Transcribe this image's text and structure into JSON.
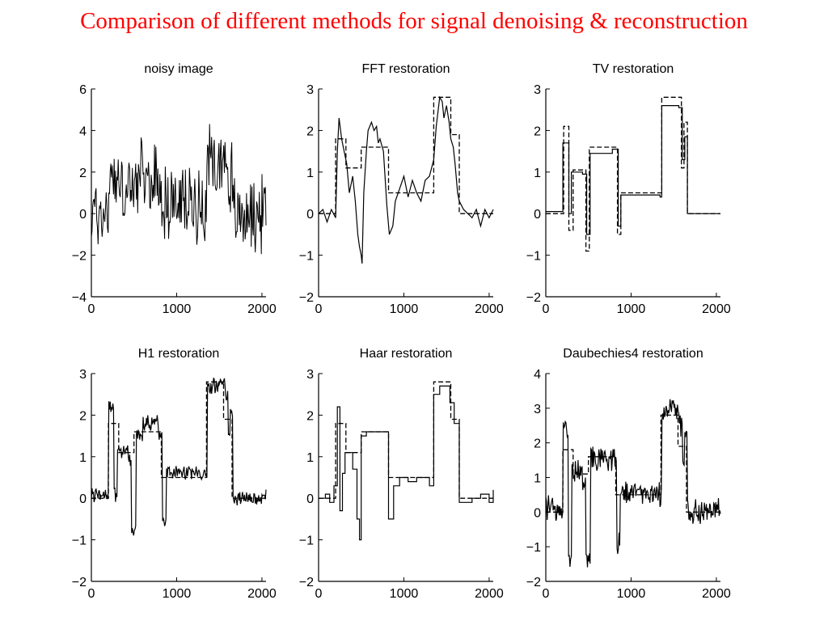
{
  "slide": {
    "title": "Comparison of different methods for signal denoising & reconstruction",
    "title_color": "#ff0000"
  },
  "chart_data": [
    {
      "type": "line",
      "title": "noisy image",
      "xlim": [
        0,
        2048
      ],
      "ylim": [
        -4,
        6
      ],
      "xticks": [
        0,
        1000,
        2000
      ],
      "yticks": [
        -4,
        -2,
        0,
        2,
        4,
        6
      ],
      "xtick_labels": [
        "0",
        "1000",
        "2000"
      ],
      "ytick_labels": [
        "−4",
        "−2",
        "0",
        "2",
        "4",
        "6"
      ],
      "grid": false,
      "series": [
        {
          "style": "noisy",
          "noise": 1.5,
          "steps": [
            [
              0,
              0
            ],
            [
              200,
              1.8
            ],
            [
              320,
              1.1
            ],
            [
              500,
              1.6
            ],
            [
              820,
              0.5
            ],
            [
              1350,
              2.6
            ],
            [
              1600,
              1.8
            ],
            [
              1650,
              0
            ],
            [
              2048,
              0
            ]
          ]
        }
      ]
    },
    {
      "type": "line",
      "title": "FFT restoration",
      "xlim": [
        0,
        2048
      ],
      "ylim": [
        -2,
        3
      ],
      "xticks": [
        0,
        1000,
        2000
      ],
      "yticks": [
        -2,
        -1,
        0,
        1,
        2,
        3
      ],
      "xtick_labels": [
        "0",
        "1000",
        "2000"
      ],
      "ytick_labels": [
        "−2",
        "−1",
        "0",
        "1",
        "2",
        "3"
      ],
      "grid": false,
      "series": [
        {
          "style": "solid",
          "points": [
            [
              0,
              0
            ],
            [
              50,
              0.1
            ],
            [
              100,
              -0.2
            ],
            [
              150,
              0.1
            ],
            [
              200,
              -0.1
            ],
            [
              220,
              1.5
            ],
            [
              240,
              2.3
            ],
            [
              270,
              1.8
            ],
            [
              300,
              1.5
            ],
            [
              330,
              1.2
            ],
            [
              360,
              0.5
            ],
            [
              400,
              0.9
            ],
            [
              430,
              0.3
            ],
            [
              460,
              -0.5
            ],
            [
              480,
              -0.8
            ],
            [
              500,
              -1.0
            ],
            [
              510,
              -1.2
            ],
            [
              530,
              0.5
            ],
            [
              560,
              1.5
            ],
            [
              580,
              2.0
            ],
            [
              620,
              2.2
            ],
            [
              650,
              2.0
            ],
            [
              680,
              2.1
            ],
            [
              700,
              1.7
            ],
            [
              720,
              1.8
            ],
            [
              760,
              1.5
            ],
            [
              800,
              0.2
            ],
            [
              830,
              -0.5
            ],
            [
              870,
              -0.3
            ],
            [
              900,
              0.3
            ],
            [
              950,
              0.6
            ],
            [
              1000,
              0.9
            ],
            [
              1050,
              0.4
            ],
            [
              1100,
              0.8
            ],
            [
              1150,
              0.5
            ],
            [
              1200,
              0.3
            ],
            [
              1250,
              0.8
            ],
            [
              1300,
              0.9
            ],
            [
              1350,
              1.3
            ],
            [
              1380,
              2.1
            ],
            [
              1420,
              2.8
            ],
            [
              1450,
              2.7
            ],
            [
              1470,
              2.3
            ],
            [
              1500,
              2.6
            ],
            [
              1530,
              2.2
            ],
            [
              1550,
              1.8
            ],
            [
              1580,
              1.6
            ],
            [
              1600,
              1.2
            ],
            [
              1630,
              0.5
            ],
            [
              1650,
              0.3
            ],
            [
              1700,
              0.1
            ],
            [
              1750,
              0.0
            ],
            [
              1800,
              -0.1
            ],
            [
              1850,
              0.1
            ],
            [
              1900,
              -0.3
            ],
            [
              1950,
              0.1
            ],
            [
              2000,
              -0.1
            ],
            [
              2048,
              0.1
            ]
          ]
        },
        {
          "style": "dashed",
          "steps": [
            [
              0,
              0
            ],
            [
              200,
              1.8
            ],
            [
              320,
              1.1
            ],
            [
              500,
              1.6
            ],
            [
              820,
              0.5
            ],
            [
              1350,
              2.8
            ],
            [
              1550,
              1.9
            ],
            [
              1650,
              0
            ],
            [
              2048,
              0
            ]
          ]
        }
      ]
    },
    {
      "type": "line",
      "title": "TV restoration",
      "xlim": [
        0,
        2048
      ],
      "ylim": [
        -2,
        3
      ],
      "xticks": [
        0,
        1000,
        2000
      ],
      "yticks": [
        -2,
        -1,
        0,
        1,
        2,
        3
      ],
      "xtick_labels": [
        "0",
        "1000",
        "2000"
      ],
      "ytick_labels": [
        "−2",
        "−1",
        "0",
        "1",
        "2",
        "3"
      ],
      "grid": false,
      "series": [
        {
          "style": "solid",
          "steps": [
            [
              0,
              0.05
            ],
            [
              200,
              1.7
            ],
            [
              270,
              0.0
            ],
            [
              300,
              1.0
            ],
            [
              430,
              0.95
            ],
            [
              480,
              -0.5
            ],
            [
              520,
              1.45
            ],
            [
              780,
              1.55
            ],
            [
              850,
              -0.3
            ],
            [
              880,
              0.45
            ],
            [
              1340,
              0.4
            ],
            [
              1360,
              2.6
            ],
            [
              1560,
              2.55
            ],
            [
              1600,
              1.3
            ],
            [
              1630,
              1.85
            ],
            [
              1660,
              0.0
            ],
            [
              2048,
              0.0
            ]
          ]
        },
        {
          "style": "dashed",
          "steps": [
            [
              0,
              0
            ],
            [
              210,
              2.1
            ],
            [
              270,
              -0.4
            ],
            [
              320,
              1.05
            ],
            [
              470,
              -0.9
            ],
            [
              510,
              1.6
            ],
            [
              790,
              1.6
            ],
            [
              840,
              -0.5
            ],
            [
              880,
              0.5
            ],
            [
              1350,
              0.5
            ],
            [
              1360,
              2.8
            ],
            [
              1540,
              2.8
            ],
            [
              1590,
              1.1
            ],
            [
              1620,
              2.2
            ],
            [
              1660,
              0
            ],
            [
              2048,
              0
            ]
          ]
        }
      ]
    },
    {
      "type": "line",
      "title": "H1 restoration",
      "xlim": [
        0,
        2048
      ],
      "ylim": [
        -2,
        3
      ],
      "xticks": [
        0,
        1000,
        2000
      ],
      "yticks": [
        -2,
        -1,
        0,
        1,
        2,
        3
      ],
      "xtick_labels": [
        "0",
        "1000",
        "2000"
      ],
      "ytick_labels": [
        "−2",
        "−1",
        "0",
        "1",
        "2",
        "3"
      ],
      "grid": false,
      "series": [
        {
          "style": "noisy",
          "noise": 0.15,
          "steps": [
            [
              0,
              0.1
            ],
            [
              200,
              2.2
            ],
            [
              260,
              0.1
            ],
            [
              300,
              1.1
            ],
            [
              430,
              0.9
            ],
            [
              470,
              -0.8
            ],
            [
              520,
              1.5
            ],
            [
              600,
              1.8
            ],
            [
              780,
              1.5
            ],
            [
              830,
              -0.6
            ],
            [
              880,
              0.6
            ],
            [
              1340,
              0.6
            ],
            [
              1360,
              2.7
            ],
            [
              1560,
              2.5
            ],
            [
              1600,
              1.5
            ],
            [
              1630,
              2.1
            ],
            [
              1660,
              0.0
            ],
            [
              2048,
              0.1
            ]
          ]
        },
        {
          "style": "dashed",
          "steps": [
            [
              0,
              0
            ],
            [
              200,
              1.8
            ],
            [
              320,
              1.1
            ],
            [
              500,
              1.6
            ],
            [
              820,
              0.5
            ],
            [
              1350,
              2.8
            ],
            [
              1550,
              1.9
            ],
            [
              1650,
              0
            ],
            [
              2048,
              0
            ]
          ]
        }
      ]
    },
    {
      "type": "line",
      "title": "Haar restoration",
      "xlim": [
        0,
        2048
      ],
      "ylim": [
        -2,
        3
      ],
      "xticks": [
        0,
        1000,
        2000
      ],
      "yticks": [
        -2,
        -1,
        0,
        1,
        2,
        3
      ],
      "xtick_labels": [
        "0",
        "1000",
        "2000"
      ],
      "ytick_labels": [
        "−2",
        "−1",
        "0",
        "1",
        "2",
        "3"
      ],
      "grid": false,
      "series": [
        {
          "style": "solid",
          "steps": [
            [
              0,
              0.0
            ],
            [
              80,
              0.1
            ],
            [
              130,
              -0.1
            ],
            [
              180,
              0.3
            ],
            [
              220,
              2.2
            ],
            [
              250,
              -0.3
            ],
            [
              280,
              0.6
            ],
            [
              310,
              1.1
            ],
            [
              400,
              0.7
            ],
            [
              450,
              -0.5
            ],
            [
              480,
              -1.0
            ],
            [
              500,
              1.5
            ],
            [
              560,
              1.6
            ],
            [
              750,
              1.6
            ],
            [
              820,
              -0.5
            ],
            [
              880,
              0.3
            ],
            [
              950,
              0.5
            ],
            [
              1050,
              0.4
            ],
            [
              1150,
              0.5
            ],
            [
              1300,
              0.3
            ],
            [
              1350,
              2.5
            ],
            [
              1420,
              2.7
            ],
            [
              1540,
              2.3
            ],
            [
              1590,
              1.8
            ],
            [
              1650,
              -0.1
            ],
            [
              1800,
              0.0
            ],
            [
              1900,
              0.1
            ],
            [
              2000,
              -0.1
            ],
            [
              2048,
              0.2
            ]
          ]
        },
        {
          "style": "dashed",
          "steps": [
            [
              0,
              0
            ],
            [
              200,
              1.8
            ],
            [
              320,
              1.1
            ],
            [
              500,
              1.6
            ],
            [
              820,
              0.5
            ],
            [
              1350,
              2.8
            ],
            [
              1550,
              1.9
            ],
            [
              1650,
              0
            ],
            [
              2048,
              0
            ]
          ]
        }
      ]
    },
    {
      "type": "line",
      "title": "Daubechies4 restoration",
      "xlim": [
        0,
        2048
      ],
      "ylim": [
        -2,
        4
      ],
      "xticks": [
        0,
        1000,
        2000
      ],
      "yticks": [
        -2,
        -1,
        0,
        1,
        2,
        3,
        4
      ],
      "xtick_labels": [
        "0",
        "1000",
        "2000"
      ],
      "ytick_labels": [
        "−2",
        "−1",
        "0",
        "1",
        "2",
        "3",
        "4"
      ],
      "grid": false,
      "series": [
        {
          "style": "noisy",
          "noise": 0.3,
          "steps": [
            [
              0,
              0.1
            ],
            [
              200,
              2.3
            ],
            [
              260,
              -1.2
            ],
            [
              300,
              1.2
            ],
            [
              430,
              1.0
            ],
            [
              470,
              -1.3
            ],
            [
              520,
              1.5
            ],
            [
              780,
              1.6
            ],
            [
              830,
              -1.0
            ],
            [
              870,
              0.5
            ],
            [
              1340,
              0.4
            ],
            [
              1360,
              2.9
            ],
            [
              1560,
              2.5
            ],
            [
              1600,
              1.5
            ],
            [
              1630,
              2.1
            ],
            [
              1660,
              0.0
            ],
            [
              2048,
              0.1
            ]
          ]
        },
        {
          "style": "dashed",
          "steps": [
            [
              0,
              0
            ],
            [
              200,
              1.8
            ],
            [
              320,
              1.1
            ],
            [
              500,
              1.6
            ],
            [
              820,
              0.5
            ],
            [
              1350,
              2.8
            ],
            [
              1550,
              1.9
            ],
            [
              1650,
              0
            ],
            [
              2048,
              0
            ]
          ]
        }
      ]
    }
  ]
}
